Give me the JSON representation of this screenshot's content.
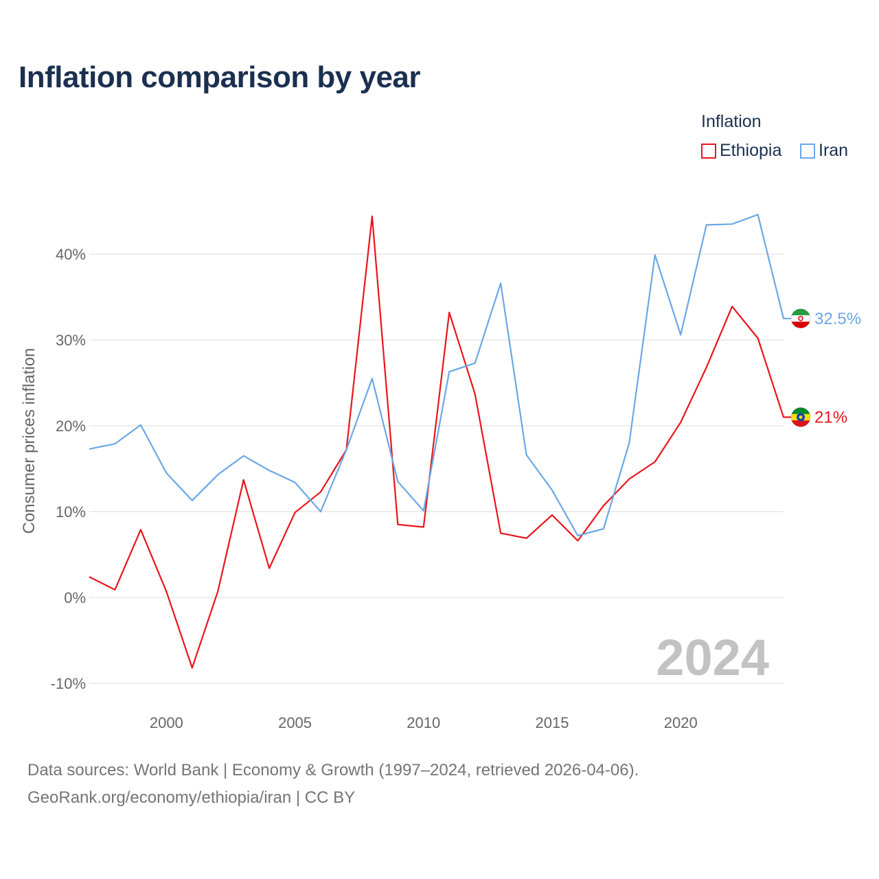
{
  "title": "Inflation comparison by year",
  "legend": {
    "title": "Inflation",
    "items": [
      {
        "name": "Ethiopia",
        "color": "#e8141b"
      },
      {
        "name": "Iran",
        "color": "#6aa7e6"
      }
    ]
  },
  "source": {
    "line1": "Data sources: World Bank | Economy & Growth (1997–2024, retrieved 2026-04-06).",
    "line2": "GeoRank.org/economy/ethiopia/iran | CC BY"
  },
  "chart_data": {
    "type": "line",
    "title": "Inflation comparison by year",
    "xlabel": "",
    "ylabel": "Consumer prices inflation",
    "x": [
      1997,
      1998,
      1999,
      2000,
      2001,
      2002,
      2003,
      2004,
      2005,
      2006,
      2007,
      2008,
      2009,
      2010,
      2011,
      2012,
      2013,
      2014,
      2015,
      2016,
      2017,
      2018,
      2019,
      2020,
      2021,
      2022,
      2023,
      2024
    ],
    "xlim": [
      1997,
      2024
    ],
    "ylim": [
      -10,
      45
    ],
    "x_ticks": [
      2000,
      2005,
      2010,
      2015,
      2020
    ],
    "y_ticks": [
      -10,
      0,
      10,
      20,
      30,
      40
    ],
    "y_tick_labels": [
      "-10%",
      "0%",
      "10%",
      "20%",
      "30%",
      "40%"
    ],
    "year_label": "2024",
    "series": [
      {
        "name": "Ethiopia",
        "color": "#e8141b",
        "values": [
          2.4,
          0.9,
          7.9,
          0.7,
          -8.2,
          0.7,
          13.7,
          3.4,
          9.9,
          12.3,
          17.2,
          44.4,
          8.5,
          8.2,
          33.2,
          23.7,
          7.5,
          6.9,
          9.6,
          6.6,
          10.7,
          13.8,
          15.8,
          20.4,
          26.8,
          33.9,
          30.2,
          21.0
        ],
        "end_label": "21%"
      },
      {
        "name": "Iran",
        "color": "#6aa7e6",
        "values": [
          17.3,
          17.9,
          20.1,
          14.5,
          11.3,
          14.3,
          16.5,
          14.8,
          13.4,
          10.0,
          17.2,
          25.5,
          13.5,
          10.1,
          26.3,
          27.3,
          36.6,
          16.6,
          12.5,
          7.2,
          8.0,
          18.0,
          39.9,
          30.6,
          43.4,
          43.5,
          44.6,
          32.5
        ],
        "end_label": "32.5%"
      }
    ]
  }
}
